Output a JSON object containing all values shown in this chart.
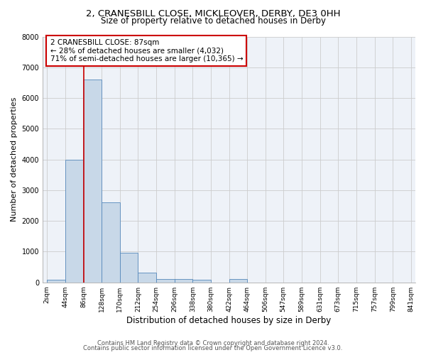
{
  "title1": "2, CRANESBILL CLOSE, MICKLEOVER, DERBY, DE3 0HH",
  "title2": "Size of property relative to detached houses in Derby",
  "xlabel": "Distribution of detached houses by size in Derby",
  "ylabel": "Number of detached properties",
  "bar_color": "#c8d8e8",
  "bar_edge_color": "#5588bb",
  "bar_edge_width": 0.6,
  "bin_edges": [
    2,
    44,
    86,
    128,
    170,
    212,
    254,
    296,
    338,
    380,
    422,
    464,
    506,
    547,
    589,
    631,
    673,
    715,
    757,
    799,
    841
  ],
  "bar_heights": [
    75,
    4000,
    6600,
    2600,
    960,
    320,
    120,
    100,
    80,
    0,
    100,
    0,
    0,
    0,
    0,
    0,
    0,
    0,
    0,
    0
  ],
  "tick_labels": [
    "2sqm",
    "44sqm",
    "86sqm",
    "128sqm",
    "170sqm",
    "212sqm",
    "254sqm",
    "296sqm",
    "338sqm",
    "380sqm",
    "422sqm",
    "464sqm",
    "506sqm",
    "547sqm",
    "589sqm",
    "631sqm",
    "673sqm",
    "715sqm",
    "757sqm",
    "799sqm",
    "841sqm"
  ],
  "property_size": 87,
  "red_line_color": "#cc0000",
  "annotation_line1": "2 CRANESBILL CLOSE: 87sqm",
  "annotation_line2": "← 28% of detached houses are smaller (4,032)",
  "annotation_line3": "71% of semi-detached houses are larger (10,365) →",
  "annotation_box_color": "#ffffff",
  "annotation_box_edge_color": "#cc0000",
  "ylim": [
    0,
    8000
  ],
  "yticks": [
    0,
    1000,
    2000,
    3000,
    4000,
    5000,
    6000,
    7000,
    8000
  ],
  "grid_color": "#cccccc",
  "bg_color": "#eef2f8",
  "footer1": "Contains HM Land Registry data © Crown copyright and database right 2024.",
  "footer2": "Contains public sector information licensed under the Open Government Licence v3.0.",
  "title1_fontsize": 9.5,
  "title2_fontsize": 8.5,
  "tick_fontsize": 6.5,
  "ylabel_fontsize": 8,
  "xlabel_fontsize": 8.5,
  "annotation_fontsize": 7.5,
  "footer_fontsize": 6
}
